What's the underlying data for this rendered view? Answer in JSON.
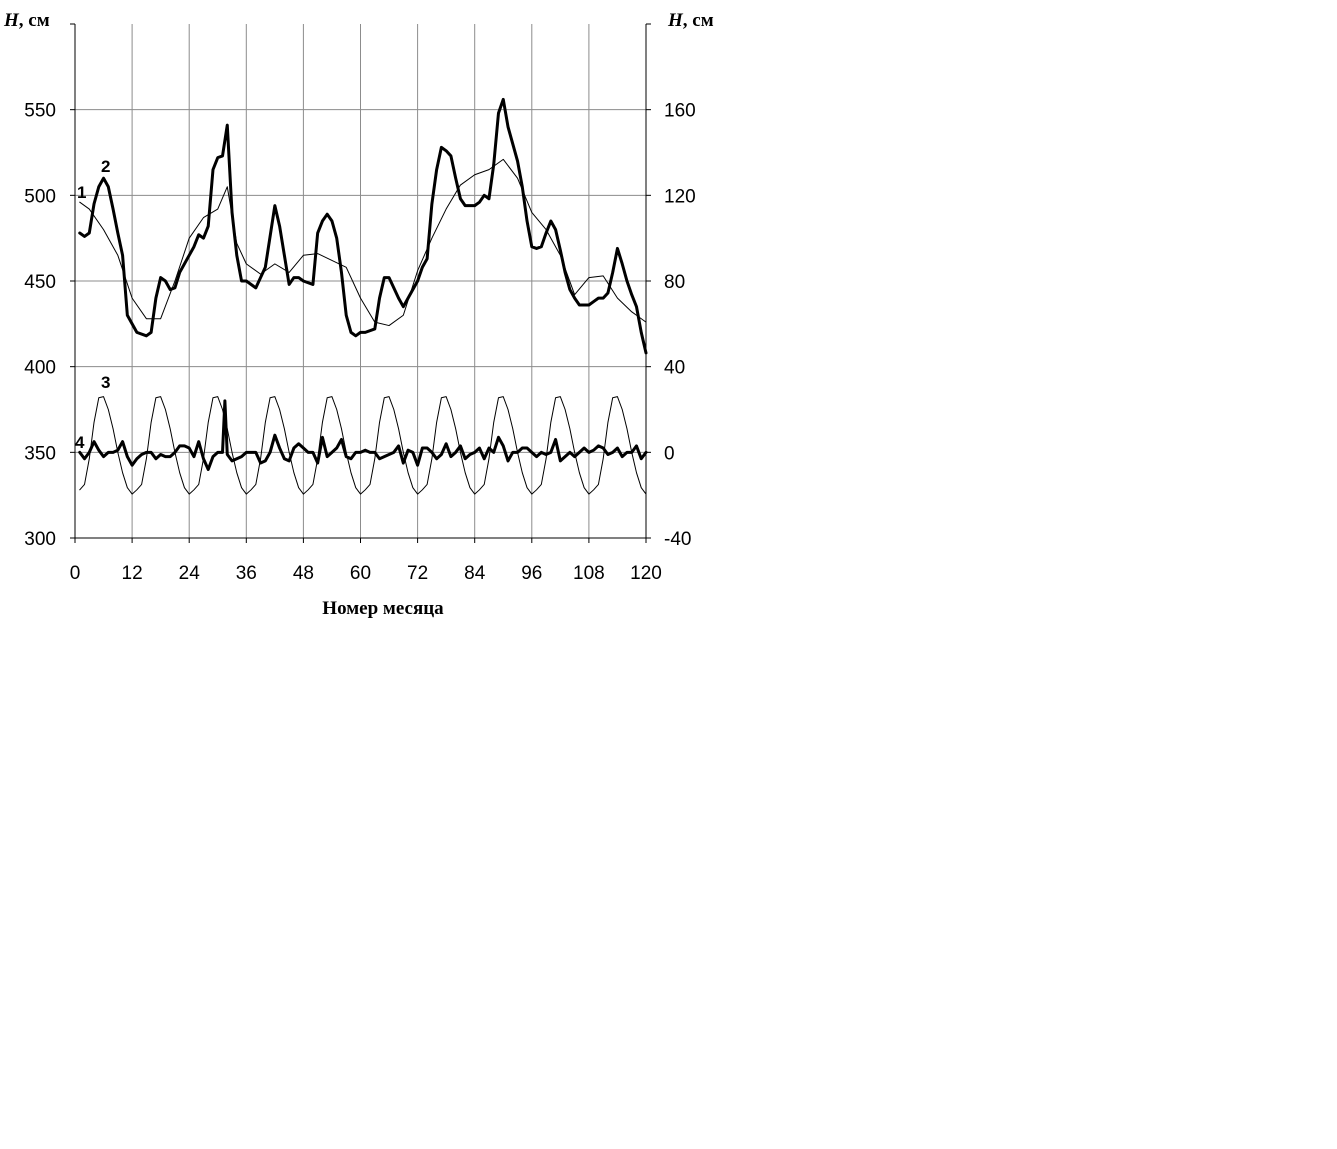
{
  "chart_data": {
    "type": "line",
    "xlabel": "Номер месяца",
    "ylabel_left_italic": "H",
    "ylabel_left_unit": ", см",
    "ylabel_right_italic": "H",
    "ylabel_right_unit": ", см",
    "xlim": [
      0,
      120
    ],
    "ylim_left": [
      300,
      600
    ],
    "ylim_right": [
      -40,
      200
    ],
    "x_ticks": [
      0,
      12,
      24,
      36,
      48,
      60,
      72,
      84,
      96,
      108,
      120
    ],
    "y_ticks_left": [
      300,
      350,
      400,
      450,
      500,
      550
    ],
    "y_ticks_right": [
      -40,
      0,
      40,
      80,
      120,
      160
    ],
    "grid": true,
    "series": [
      {
        "name": "1",
        "axis": "left",
        "style": "thin",
        "x": [
          1,
          3,
          6,
          9,
          12,
          15,
          18,
          21,
          24,
          27,
          30,
          32,
          34,
          36,
          39,
          42,
          45,
          48,
          51,
          54,
          57,
          60,
          63,
          66,
          69,
          72,
          75,
          78,
          81,
          84,
          87,
          90,
          93,
          96,
          99,
          102,
          105,
          108,
          111,
          114,
          117,
          120
        ],
        "y": [
          496,
          492,
          480,
          465,
          440,
          428,
          428,
          450,
          475,
          487,
          492,
          505,
          472,
          460,
          454,
          460,
          455,
          465,
          466,
          462,
          458,
          440,
          426,
          424,
          430,
          456,
          475,
          492,
          506,
          512,
          515,
          521,
          510,
          490,
          480,
          465,
          442,
          452,
          453,
          440,
          432,
          426
        ]
      },
      {
        "name": "2",
        "axis": "left",
        "style": "thick",
        "x": [
          1,
          2,
          3,
          4,
          5,
          6,
          7,
          8,
          9,
          10,
          11,
          13,
          15,
          16,
          17,
          18,
          19,
          20,
          21,
          22,
          23,
          24,
          25,
          26,
          27,
          28,
          29,
          30,
          31,
          32,
          33,
          34,
          35,
          36,
          38,
          40,
          42,
          43,
          44,
          45,
          46,
          47,
          48,
          50,
          51,
          52,
          53,
          54,
          55,
          56,
          57,
          58,
          59,
          60,
          61,
          63,
          64,
          65,
          66,
          67,
          68,
          69,
          70,
          72,
          73,
          74,
          75,
          76,
          77,
          78,
          79,
          80,
          81,
          82,
          84,
          85,
          86,
          87,
          88,
          89,
          90,
          91,
          92,
          93,
          94,
          95,
          96,
          97,
          98,
          99,
          100,
          101,
          102,
          103,
          104,
          105,
          106,
          107,
          108,
          109,
          110,
          111,
          112,
          113,
          114,
          115,
          116,
          117,
          118,
          119,
          120
        ],
        "y": [
          478,
          476,
          478,
          495,
          505,
          510,
          505,
          492,
          478,
          465,
          430,
          420,
          418,
          420,
          440,
          452,
          450,
          445,
          446,
          455,
          460,
          465,
          470,
          477,
          475,
          482,
          515,
          522,
          523,
          541,
          490,
          465,
          450,
          450,
          446,
          458,
          494,
          482,
          465,
          448,
          452,
          452,
          450,
          448,
          478,
          485,
          489,
          485,
          475,
          455,
          430,
          420,
          418,
          420,
          420,
          422,
          440,
          452,
          452,
          446,
          440,
          435,
          440,
          450,
          458,
          463,
          495,
          515,
          528,
          526,
          523,
          510,
          498,
          494,
          494,
          496,
          500,
          498,
          518,
          548,
          556,
          540,
          530,
          520,
          505,
          485,
          470,
          469,
          470,
          478,
          485,
          480,
          468,
          455,
          445,
          440,
          436,
          436,
          436,
          438,
          440,
          440,
          443,
          455,
          469,
          460,
          450,
          442,
          435,
          420,
          408
        ]
      },
      {
        "name": "3",
        "axis": "right",
        "style": "thin",
        "seasonal_cycle_months": 12,
        "cycle_phase": [
          -17.5,
          -15.0,
          -3.0,
          14.0,
          25.5,
          26.0,
          20.0,
          11.0,
          0.0,
          -9.5,
          -16.5,
          -19.5
        ],
        "x_first": 1,
        "x_last": 120
      },
      {
        "name": "4",
        "axis": "right",
        "style": "thick",
        "x": [
          1,
          2,
          3,
          4,
          5,
          6,
          7,
          8,
          9,
          10,
          11,
          12,
          13,
          14,
          15,
          16,
          17,
          18,
          19,
          20,
          21,
          22,
          23,
          24,
          25,
          26,
          27,
          28,
          29,
          30,
          31,
          31.5,
          32,
          33,
          34,
          35,
          36,
          37,
          38,
          39,
          40,
          41,
          42,
          43,
          44,
          45,
          46,
          47,
          48,
          49,
          50,
          51,
          52,
          53,
          54,
          55,
          56,
          57,
          58,
          59,
          60,
          61,
          62,
          63,
          64,
          65,
          66,
          67,
          68,
          69,
          70,
          71,
          72,
          73,
          74,
          75,
          76,
          77,
          78,
          79,
          80,
          81,
          82,
          83,
          84,
          85,
          86,
          87,
          88,
          89,
          90,
          91,
          92,
          93,
          94,
          95,
          96,
          97,
          98,
          99,
          100,
          101,
          102,
          103,
          104,
          105,
          106,
          107,
          108,
          109,
          110,
          111,
          112,
          113,
          114,
          115,
          116,
          117,
          118,
          119,
          120
        ],
        "y": [
          0,
          -3,
          0,
          5,
          1,
          -2,
          0,
          0,
          1,
          5,
          -2,
          -6,
          -3,
          -1,
          0,
          0,
          -3,
          -1,
          -2,
          -2,
          0,
          3,
          3,
          2,
          -2,
          5,
          -3,
          -8,
          -2,
          0,
          0,
          24,
          -1,
          -4,
          -3,
          -2,
          0,
          0,
          0,
          -5,
          -4,
          0,
          8,
          2,
          -3,
          -4,
          2,
          4,
          2,
          0,
          0,
          -5,
          7,
          -2,
          0,
          2,
          6,
          -2,
          -3,
          0,
          0,
          1,
          0,
          0,
          -3,
          -2,
          -1,
          0,
          3,
          -5,
          1,
          0,
          -6,
          2,
          2,
          0,
          -3,
          -1,
          4,
          -2,
          0,
          3,
          -3,
          -1,
          0,
          2,
          -3,
          2,
          0,
          7,
          3,
          -4,
          0,
          0,
          2,
          2,
          0,
          -2,
          0,
          -1,
          0,
          6,
          -4,
          -2,
          0,
          -2,
          0,
          2,
          0,
          1,
          3,
          2,
          -1,
          0,
          2,
          -2,
          0,
          0,
          3,
          -3,
          0
        ]
      }
    ]
  }
}
